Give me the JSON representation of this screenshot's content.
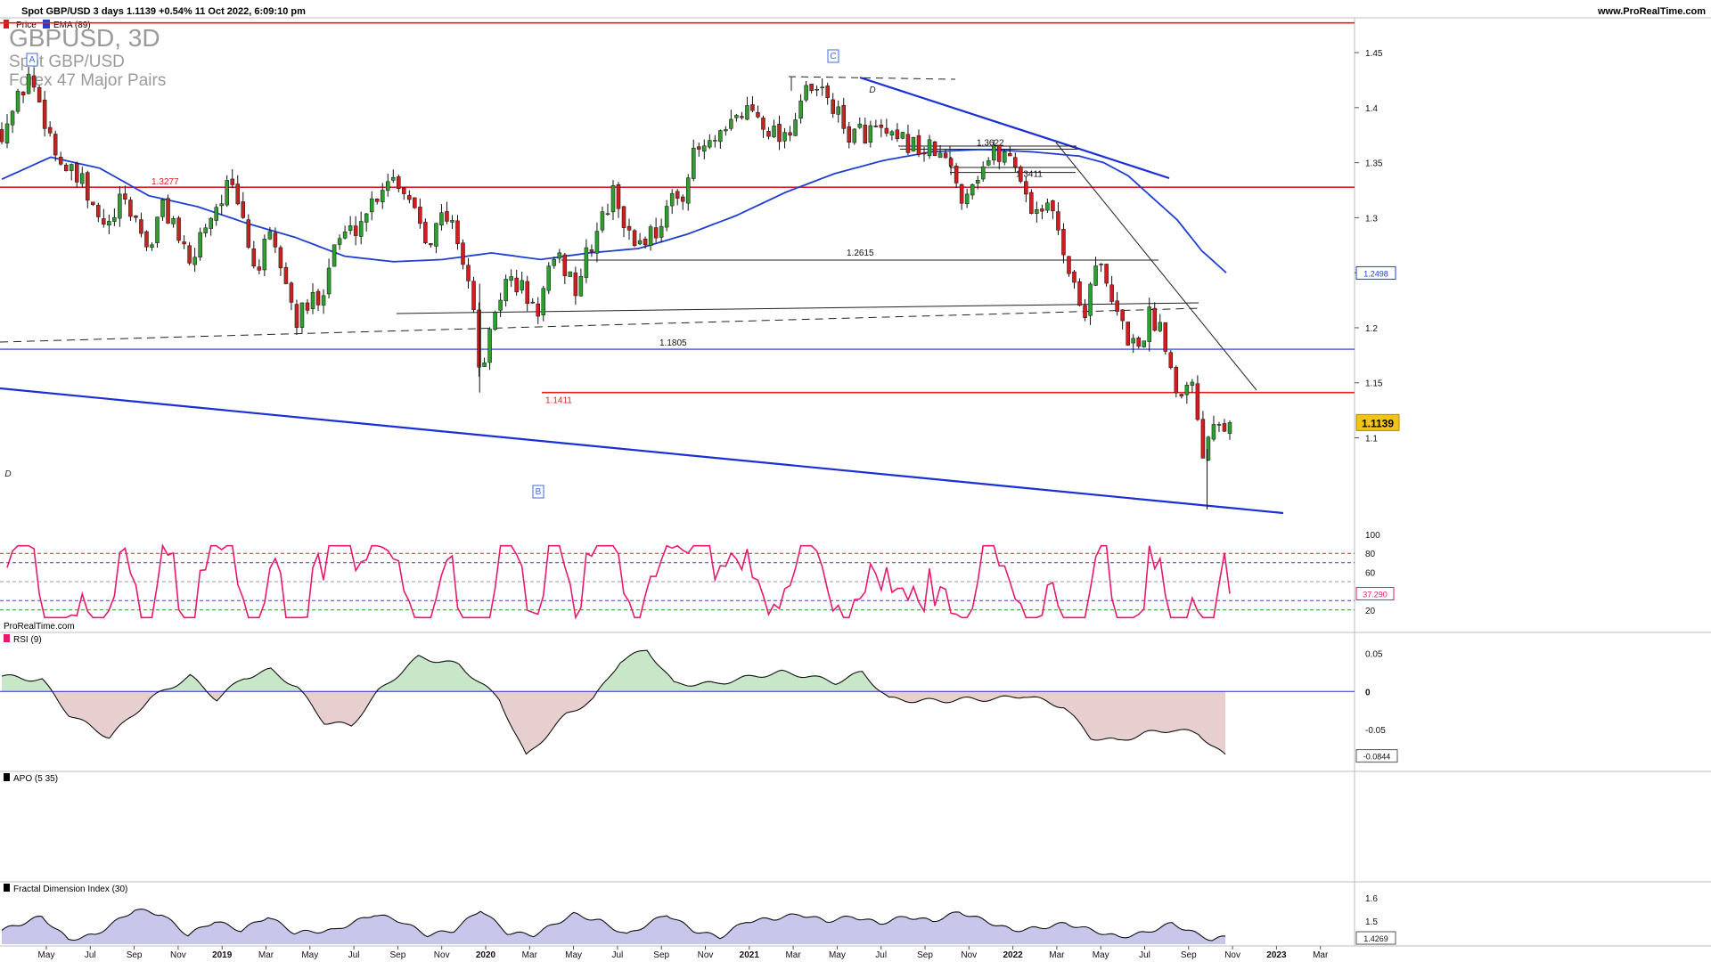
{
  "header": {
    "title": "Spot GBP/USD 3 days 1.1139 +0.54% 11 Oct 2022, 6:09:10 pm",
    "site": "www.ProRealTime.com",
    "legend_price": "Price",
    "legend_ema": "EMA (89)"
  },
  "watermark": {
    "symbol": "GBPUSD, 3D",
    "name": "Spot GBP/USD",
    "group": "Forex 47 Major Pairs"
  },
  "footer_brand": "ProRealTime.com",
  "colors": {
    "up": "#2e9e2e",
    "down": "#cc1f1f",
    "ema": "#1f3fd0",
    "trend": "#1a2fd6",
    "level_red": "#e02020",
    "rsi": "#e8196e",
    "price_tag": "#f2c418",
    "apo_pos": "#c8e6c8",
    "apo_neg": "#e7cfcf",
    "fdi_fill": "#c9c6ec"
  },
  "chart_data": [
    {
      "type": "candlestick",
      "title": "GBPUSD, 3D",
      "ylim": [
        1.03,
        1.48
      ],
      "y_ticks": [
        "1.45",
        "1.4",
        "1.35",
        "1.3",
        "1.25",
        "1.2",
        "1.15",
        "1.1"
      ],
      "x_ticks": [
        "May",
        "Jul",
        "Sep",
        "Nov",
        "2019",
        "Mar",
        "May",
        "Jul",
        "Sep",
        "Nov",
        "2020",
        "Mar",
        "May",
        "Jul",
        "Sep",
        "Nov",
        "2021",
        "Mar",
        "May",
        "Jul",
        "Sep",
        "Nov",
        "2022",
        "Mar",
        "May",
        "Jul",
        "Sep",
        "Nov",
        "2023",
        "Mar"
      ],
      "last_price": "1.1139",
      "ema_label": "1.2498",
      "ema_path": [
        [
          0,
          1.335
        ],
        [
          4,
          1.355
        ],
        [
          8,
          1.345
        ],
        [
          12,
          1.32
        ],
        [
          16,
          1.31
        ],
        [
          20,
          1.295
        ],
        [
          24,
          1.282
        ],
        [
          28,
          1.265
        ],
        [
          32,
          1.26
        ],
        [
          36,
          1.262
        ],
        [
          40,
          1.268
        ],
        [
          44,
          1.262
        ],
        [
          48,
          1.268
        ],
        [
          52,
          1.272
        ],
        [
          56,
          1.285
        ],
        [
          60,
          1.302
        ],
        [
          64,
          1.323
        ],
        [
          68,
          1.34
        ],
        [
          72,
          1.352
        ],
        [
          76,
          1.36
        ],
        [
          80,
          1.362
        ],
        [
          84,
          1.36
        ],
        [
          88,
          1.356
        ],
        [
          90,
          1.35
        ],
        [
          92,
          1.338
        ],
        [
          94,
          1.318
        ],
        [
          96,
          1.298
        ],
        [
          98,
          1.27
        ],
        [
          100,
          1.25
        ]
      ],
      "anchors": [
        [
          0,
          1.38
        ],
        [
          1,
          1.4
        ],
        [
          2,
          1.43
        ],
        [
          3,
          1.4
        ],
        [
          4,
          1.36
        ],
        [
          5,
          1.34
        ],
        [
          6,
          1.33
        ],
        [
          7,
          1.3
        ],
        [
          8,
          1.29
        ],
        [
          9,
          1.315
        ],
        [
          10,
          1.3
        ],
        [
          11,
          1.27
        ],
        [
          12,
          1.31
        ],
        [
          13,
          1.295
        ],
        [
          14,
          1.25
        ],
        [
          15,
          1.29
        ],
        [
          16,
          1.31
        ],
        [
          17,
          1.33
        ],
        [
          18,
          1.3
        ],
        [
          19,
          1.25
        ],
        [
          20,
          1.28
        ],
        [
          21,
          1.255
        ],
        [
          22,
          1.205
        ],
        [
          23,
          1.22
        ],
        [
          24,
          1.235
        ],
        [
          25,
          1.28
        ],
        [
          26,
          1.285
        ],
        [
          27,
          1.3
        ],
        [
          28,
          1.32
        ],
        [
          29,
          1.34
        ],
        [
          30,
          1.33
        ],
        [
          31,
          1.31
        ],
        [
          32,
          1.28
        ],
        [
          33,
          1.3
        ],
        [
          34,
          1.29
        ],
        [
          35,
          1.24
        ],
        [
          36,
          1.15
        ],
        [
          37,
          1.22
        ],
        [
          38,
          1.245
        ],
        [
          39,
          1.235
        ],
        [
          40,
          1.21
        ],
        [
          41,
          1.25
        ],
        [
          42,
          1.26
        ],
        [
          43,
          1.235
        ],
        [
          44,
          1.27
        ],
        [
          45,
          1.3
        ],
        [
          46,
          1.325
        ],
        [
          47,
          1.28
        ],
        [
          48,
          1.28
        ],
        [
          49,
          1.29
        ],
        [
          50,
          1.31
        ],
        [
          51,
          1.325
        ],
        [
          52,
          1.36
        ],
        [
          53,
          1.365
        ],
        [
          54,
          1.37
        ],
        [
          55,
          1.39
        ],
        [
          56,
          1.4
        ],
        [
          57,
          1.39
        ],
        [
          58,
          1.375
        ],
        [
          59,
          1.38
        ],
        [
          60,
          1.41
        ],
        [
          61,
          1.415
        ],
        [
          62,
          1.41
        ],
        [
          63,
          1.38
        ],
        [
          64,
          1.375
        ],
        [
          65,
          1.38
        ],
        [
          66,
          1.375
        ],
        [
          67,
          1.365
        ],
        [
          68,
          1.37
        ],
        [
          69,
          1.36
        ],
        [
          70,
          1.36
        ],
        [
          71,
          1.345
        ],
        [
          72,
          1.32
        ],
        [
          73,
          1.34
        ],
        [
          74,
          1.355
        ],
        [
          75,
          1.36
        ],
        [
          76,
          1.35
        ],
        [
          77,
          1.31
        ],
        [
          78,
          1.31
        ],
        [
          79,
          1.3
        ],
        [
          80,
          1.25
        ],
        [
          81,
          1.21
        ],
        [
          82,
          1.265
        ],
        [
          83,
          1.225
        ],
        [
          84,
          1.2
        ],
        [
          85,
          1.18
        ],
        [
          86,
          1.21
        ],
        [
          87,
          1.2
        ],
        [
          88,
          1.14
        ],
        [
          89,
          1.16
        ],
        [
          90,
          1.09
        ],
        [
          91,
          1.125
        ],
        [
          92,
          1.11
        ]
      ],
      "horizontal_levels": [
        {
          "label": "",
          "value": 1.477,
          "kind": "red"
        },
        {
          "label": "1.3277",
          "value": 1.3277,
          "kind": "red"
        },
        {
          "label": "1.1805",
          "value": 1.1805,
          "kind": "blue"
        },
        {
          "label": "1.1411",
          "value": 1.1411,
          "kind": "red"
        },
        {
          "label": "1.2615",
          "value": 1.2615,
          "kind": "black"
        },
        {
          "label": "1.3622",
          "value": 1.3622,
          "kind": "black"
        },
        {
          "label": "1.3411",
          "value": 1.3411,
          "kind": "black"
        }
      ],
      "wave_labels": [
        "A",
        "B",
        "C",
        "D",
        "D"
      ]
    },
    {
      "type": "line",
      "title": "RSI (9)",
      "ylim": [
        0,
        100
      ],
      "y_ticks": [
        "100",
        "80",
        "60",
        "40",
        "20"
      ],
      "last_value": "37.290",
      "levels": [
        80,
        70,
        50,
        30,
        20
      ]
    },
    {
      "type": "area",
      "title": "APO (5 35)",
      "ylim": [
        -0.1,
        0.075
      ],
      "y_ticks": [
        "0.05",
        "0",
        "-0.05"
      ],
      "last_value": "-0.0844",
      "path": [
        [
          0,
          0.02
        ],
        [
          3,
          0.015
        ],
        [
          5,
          -0.03
        ],
        [
          8,
          -0.06
        ],
        [
          11,
          -0.01
        ],
        [
          14,
          0.02
        ],
        [
          16,
          -0.01
        ],
        [
          18,
          0.018
        ],
        [
          20,
          0.028
        ],
        [
          22,
          0.005
        ],
        [
          24,
          -0.04
        ],
        [
          26,
          -0.045
        ],
        [
          28,
          0.0
        ],
        [
          31,
          0.045
        ],
        [
          34,
          0.035
        ],
        [
          37,
          -0.01
        ],
        [
          39,
          -0.085
        ],
        [
          42,
          -0.03
        ],
        [
          44,
          -0.01
        ],
        [
          46,
          0.04
        ],
        [
          48,
          0.055
        ],
        [
          50,
          0.01
        ],
        [
          53,
          0.01
        ],
        [
          56,
          0.02
        ],
        [
          58,
          0.025
        ],
        [
          60,
          0.02
        ],
        [
          62,
          0.012
        ],
        [
          64,
          0.025
        ],
        [
          66,
          -0.01
        ],
        [
          68,
          -0.012
        ],
        [
          70,
          -0.012
        ],
        [
          72,
          -0.01
        ],
        [
          74,
          -0.01
        ],
        [
          76,
          -0.005
        ],
        [
          79,
          -0.02
        ],
        [
          81,
          -0.06
        ],
        [
          83,
          -0.065
        ],
        [
          85,
          -0.055
        ],
        [
          87,
          -0.05
        ],
        [
          89,
          -0.055
        ],
        [
          91,
          -0.085
        ]
      ]
    },
    {
      "type": "area",
      "title": "Fractal Dimension Index (30)",
      "ylim": [
        1.4,
        1.62
      ],
      "y_ticks": [
        "1.6",
        "1.5"
      ],
      "last_value": "1.4269",
      "path": [
        [
          0,
          1.46
        ],
        [
          3,
          1.52
        ],
        [
          5,
          1.42
        ],
        [
          7,
          1.44
        ],
        [
          10,
          1.55
        ],
        [
          12,
          1.53
        ],
        [
          14,
          1.44
        ],
        [
          16,
          1.5
        ],
        [
          18,
          1.46
        ],
        [
          20,
          1.52
        ],
        [
          22,
          1.45
        ],
        [
          25,
          1.46
        ],
        [
          28,
          1.53
        ],
        [
          30,
          1.5
        ],
        [
          32,
          1.44
        ],
        [
          34,
          1.46
        ],
        [
          36,
          1.55
        ],
        [
          38,
          1.45
        ],
        [
          40,
          1.44
        ],
        [
          43,
          1.53
        ],
        [
          45,
          1.5
        ],
        [
          47,
          1.44
        ],
        [
          50,
          1.53
        ],
        [
          52,
          1.46
        ],
        [
          54,
          1.43
        ],
        [
          56,
          1.5
        ],
        [
          58,
          1.51
        ],
        [
          60,
          1.53
        ],
        [
          62,
          1.5
        ],
        [
          64,
          1.52
        ],
        [
          66,
          1.49
        ],
        [
          68,
          1.52
        ],
        [
          70,
          1.5
        ],
        [
          72,
          1.54
        ],
        [
          74,
          1.5
        ],
        [
          76,
          1.46
        ],
        [
          78,
          1.47
        ],
        [
          80,
          1.49
        ],
        [
          82,
          1.46
        ],
        [
          84,
          1.43
        ],
        [
          86,
          1.45
        ],
        [
          88,
          1.49
        ],
        [
          90,
          1.44
        ],
        [
          91,
          1.42
        ],
        [
          92,
          1.43
        ]
      ]
    }
  ]
}
